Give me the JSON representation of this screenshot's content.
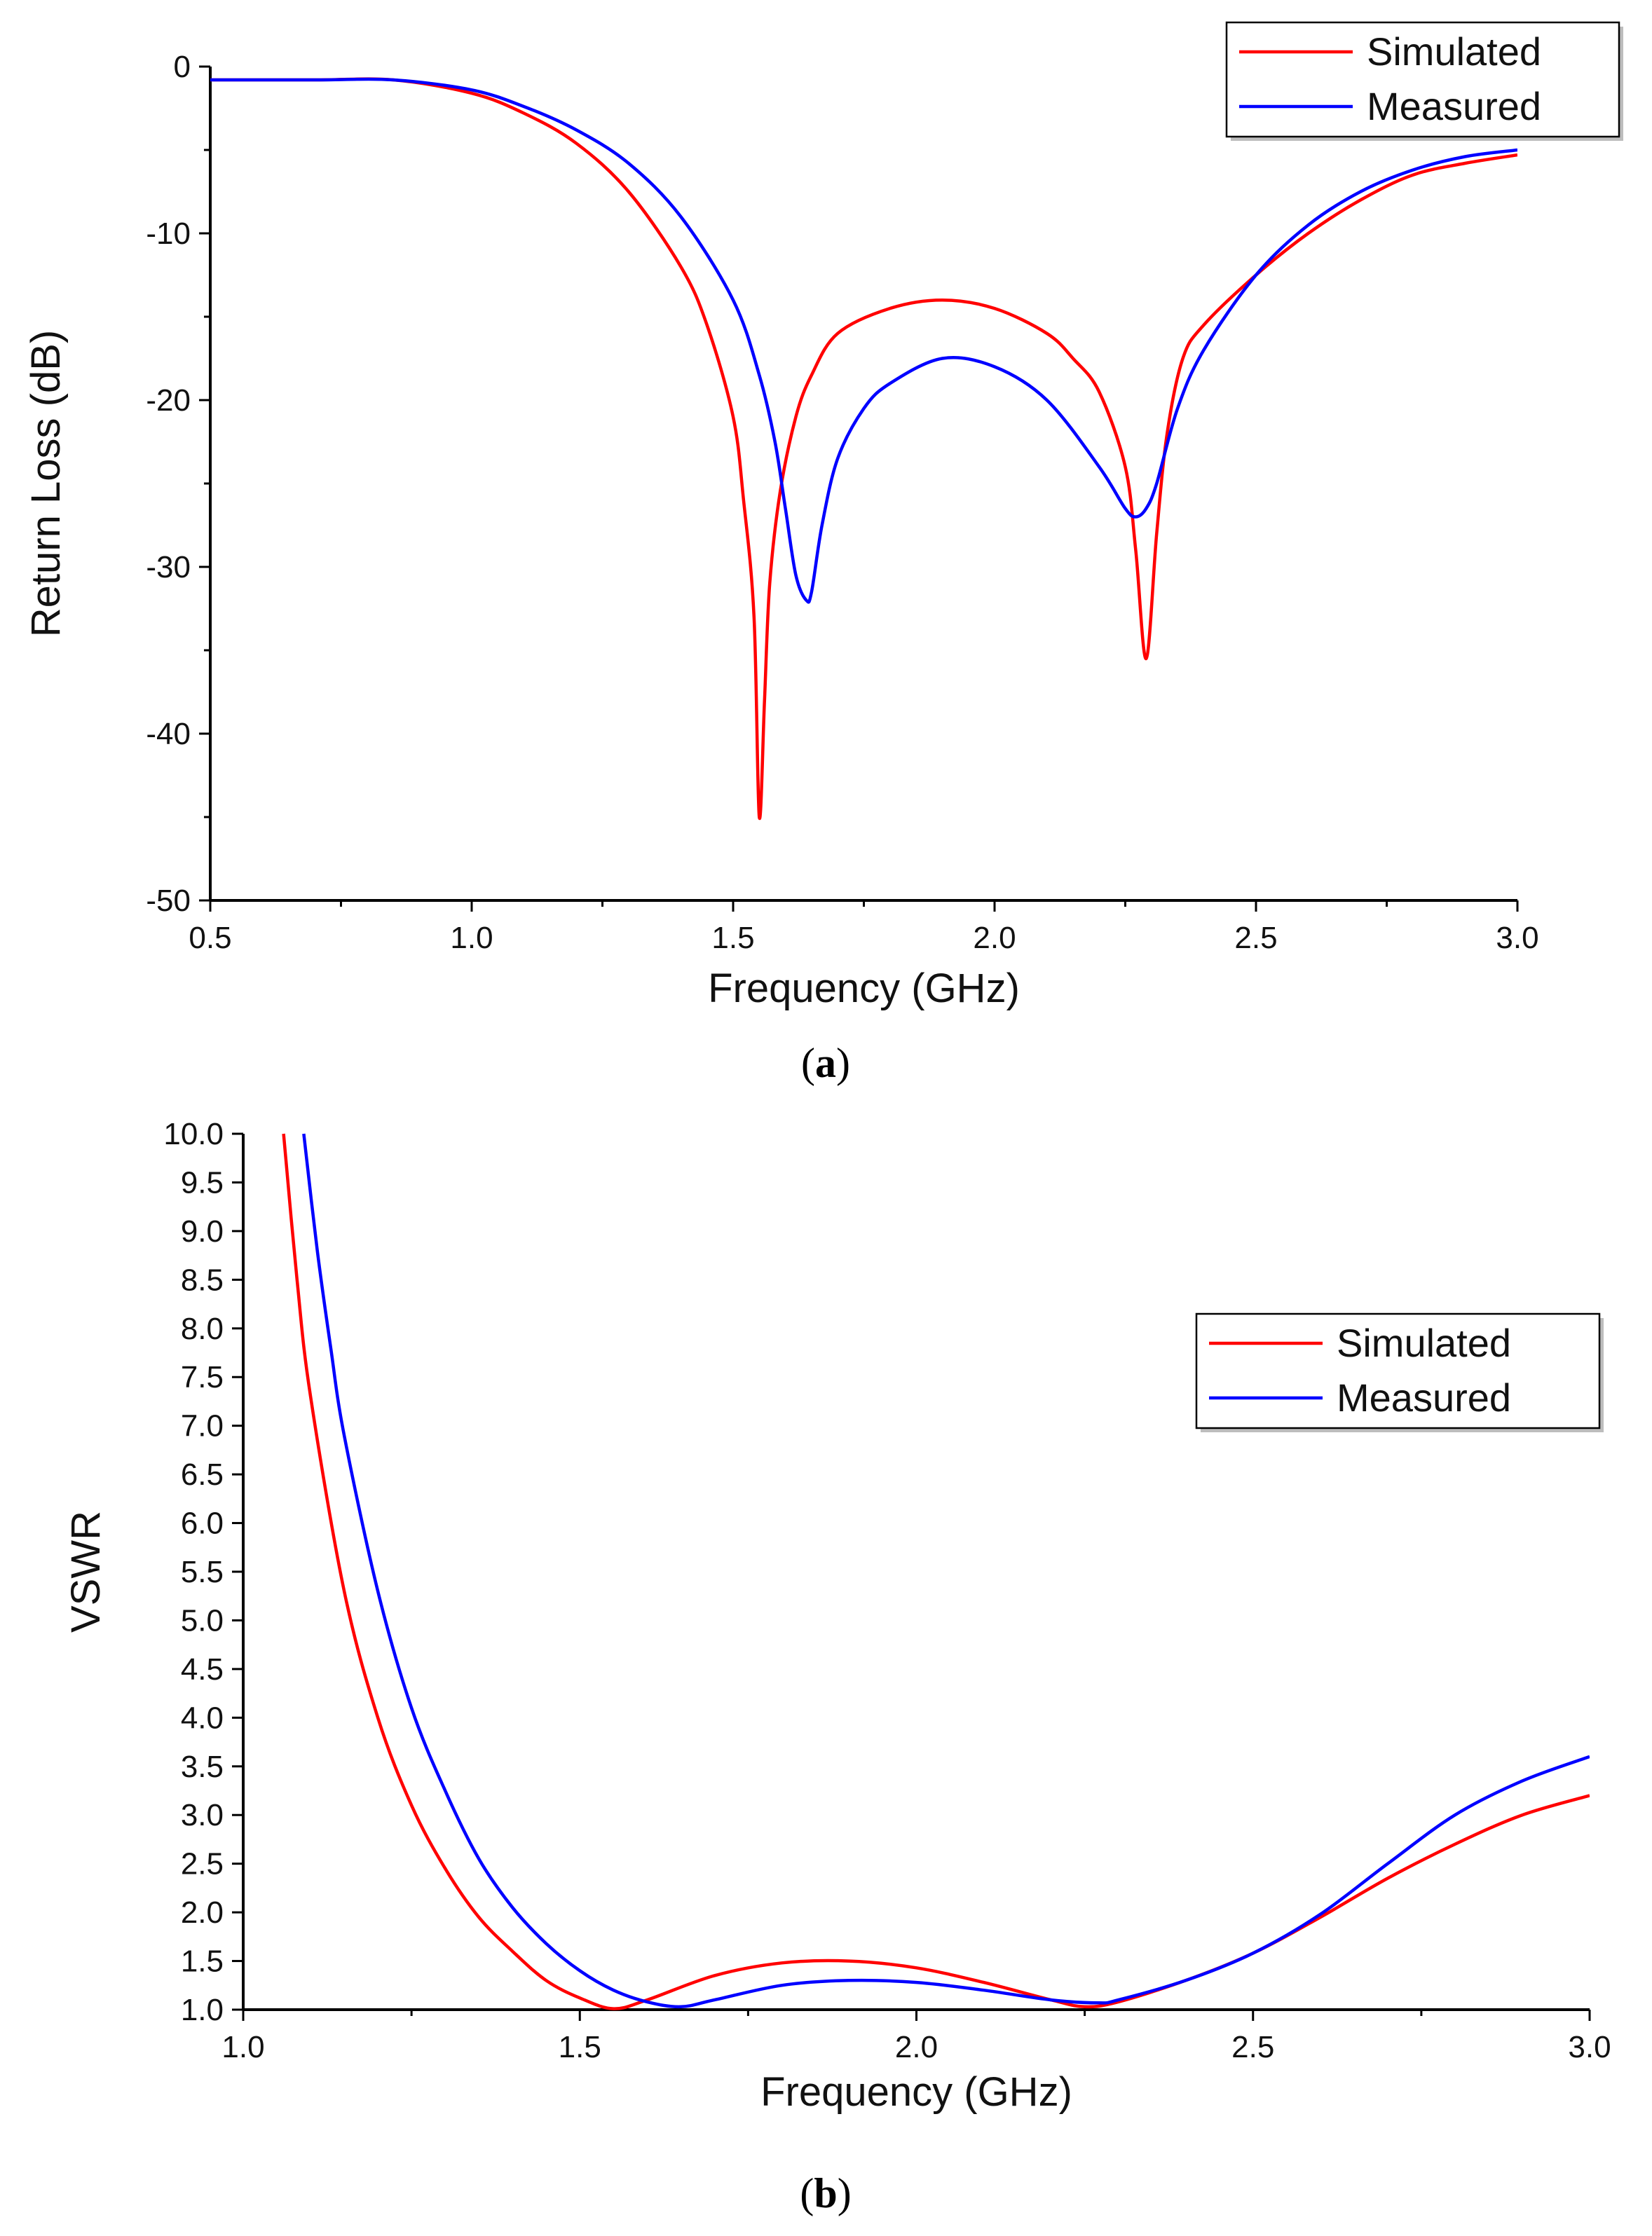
{
  "chart_data": [
    {
      "type": "line",
      "caption_letter": "a",
      "xlabel": "Frequency (GHz)",
      "ylabel": "Return Loss (dB)",
      "xlim": [
        0.5,
        3.0
      ],
      "ylim": [
        -50,
        0
      ],
      "xticks": [
        "0.5",
        "1.0",
        "1.5",
        "2.0",
        "2.5",
        "3.0"
      ],
      "yticks": [
        "0",
        "-10",
        "-20",
        "-30",
        "-40",
        "-50"
      ],
      "legend_position": "top-right",
      "series": [
        {
          "name": "Simulated",
          "color": "#ff0000",
          "x": [
            0.5,
            0.7,
            0.85,
            1.0,
            1.1,
            1.2,
            1.3,
            1.4,
            1.45,
            1.5,
            1.52,
            1.54,
            1.55,
            1.56,
            1.57,
            1.59,
            1.62,
            1.65,
            1.7,
            1.8,
            1.9,
            2.0,
            2.1,
            2.15,
            2.2,
            2.25,
            2.27,
            2.29,
            2.31,
            2.33,
            2.36,
            2.4,
            2.5,
            2.6,
            2.7,
            2.8,
            2.9,
            3.0
          ],
          "y": [
            -0.8,
            -0.8,
            -0.8,
            -1.6,
            -2.8,
            -4.6,
            -7.5,
            -12,
            -15.5,
            -21,
            -26,
            -33,
            -45,
            -38,
            -31,
            -25.5,
            -21,
            -18.5,
            -16,
            -14.5,
            -14,
            -14.5,
            -16,
            -17.5,
            -19.5,
            -24,
            -29,
            -35.5,
            -28,
            -22,
            -17.5,
            -15.5,
            -12.5,
            -10,
            -8,
            -6.5,
            -5.8,
            -5.3
          ]
        },
        {
          "name": "Measured",
          "color": "#0000ff",
          "x": [
            0.5,
            0.7,
            0.85,
            1.0,
            1.1,
            1.2,
            1.3,
            1.4,
            1.5,
            1.55,
            1.58,
            1.6,
            1.62,
            1.64,
            1.65,
            1.67,
            1.7,
            1.75,
            1.8,
            1.9,
            2.0,
            2.1,
            2.2,
            2.25,
            2.27,
            2.29,
            2.31,
            2.35,
            2.4,
            2.5,
            2.6,
            2.7,
            2.8,
            2.9,
            3.0
          ],
          "y": [
            -0.8,
            -0.8,
            -0.8,
            -1.4,
            -2.4,
            -3.8,
            -5.8,
            -9,
            -14,
            -18.5,
            -22.5,
            -26.5,
            -30.5,
            -32,
            -31.5,
            -27.5,
            -23.5,
            -20.5,
            -19,
            -17.5,
            -18,
            -20,
            -24,
            -26.5,
            -27,
            -26.5,
            -25,
            -20.5,
            -17,
            -12.5,
            -9.5,
            -7.5,
            -6.2,
            -5.4,
            -5.0
          ]
        }
      ]
    },
    {
      "type": "line",
      "caption_letter": "b",
      "xlabel": "Frequency (GHz)",
      "ylabel": "VSWR",
      "xlim": [
        1.0,
        3.0
      ],
      "ylim": [
        1.0,
        10.0
      ],
      "xticks": [
        "1.0",
        "1.5",
        "2.0",
        "2.5",
        "3.0"
      ],
      "yticks": [
        "1.0",
        "1.5",
        "2.0",
        "2.5",
        "3.0",
        "3.5",
        "4.0",
        "4.5",
        "5.0",
        "5.5",
        "6.0",
        "6.5",
        "7.0",
        "7.5",
        "8.0",
        "8.5",
        "9.0",
        "9.5",
        "10.0"
      ],
      "legend_position": "top-right",
      "series": [
        {
          "name": "Simulated",
          "color": "#ff0000",
          "x": [
            1.06,
            1.08,
            1.1,
            1.15,
            1.2,
            1.25,
            1.3,
            1.35,
            1.4,
            1.45,
            1.5,
            1.55,
            1.6,
            1.7,
            1.8,
            1.9,
            2.0,
            2.1,
            2.2,
            2.25,
            2.3,
            2.4,
            2.5,
            2.6,
            2.7,
            2.8,
            2.9,
            3.0
          ],
          "y": [
            10.0,
            8.5,
            7.3,
            5.3,
            4.0,
            3.1,
            2.45,
            1.95,
            1.6,
            1.3,
            1.12,
            1.01,
            1.1,
            1.35,
            1.48,
            1.5,
            1.43,
            1.28,
            1.1,
            1.03,
            1.08,
            1.3,
            1.58,
            1.95,
            2.35,
            2.7,
            3.0,
            3.2
          ]
        },
        {
          "name": "Measured",
          "color": "#0000ff",
          "x": [
            1.09,
            1.11,
            1.13,
            1.15,
            1.2,
            1.25,
            1.3,
            1.35,
            1.4,
            1.45,
            1.5,
            1.55,
            1.6,
            1.65,
            1.7,
            1.8,
            1.9,
            2.0,
            2.1,
            2.2,
            2.27,
            2.3,
            2.4,
            2.5,
            2.6,
            2.7,
            2.8,
            2.9,
            3.0
          ],
          "y": [
            10.0,
            8.8,
            7.8,
            6.9,
            5.3,
            4.1,
            3.25,
            2.55,
            2.05,
            1.68,
            1.4,
            1.2,
            1.08,
            1.03,
            1.1,
            1.25,
            1.3,
            1.28,
            1.2,
            1.1,
            1.07,
            1.1,
            1.3,
            1.58,
            1.98,
            2.5,
            3.0,
            3.35,
            3.6
          ]
        }
      ]
    }
  ]
}
